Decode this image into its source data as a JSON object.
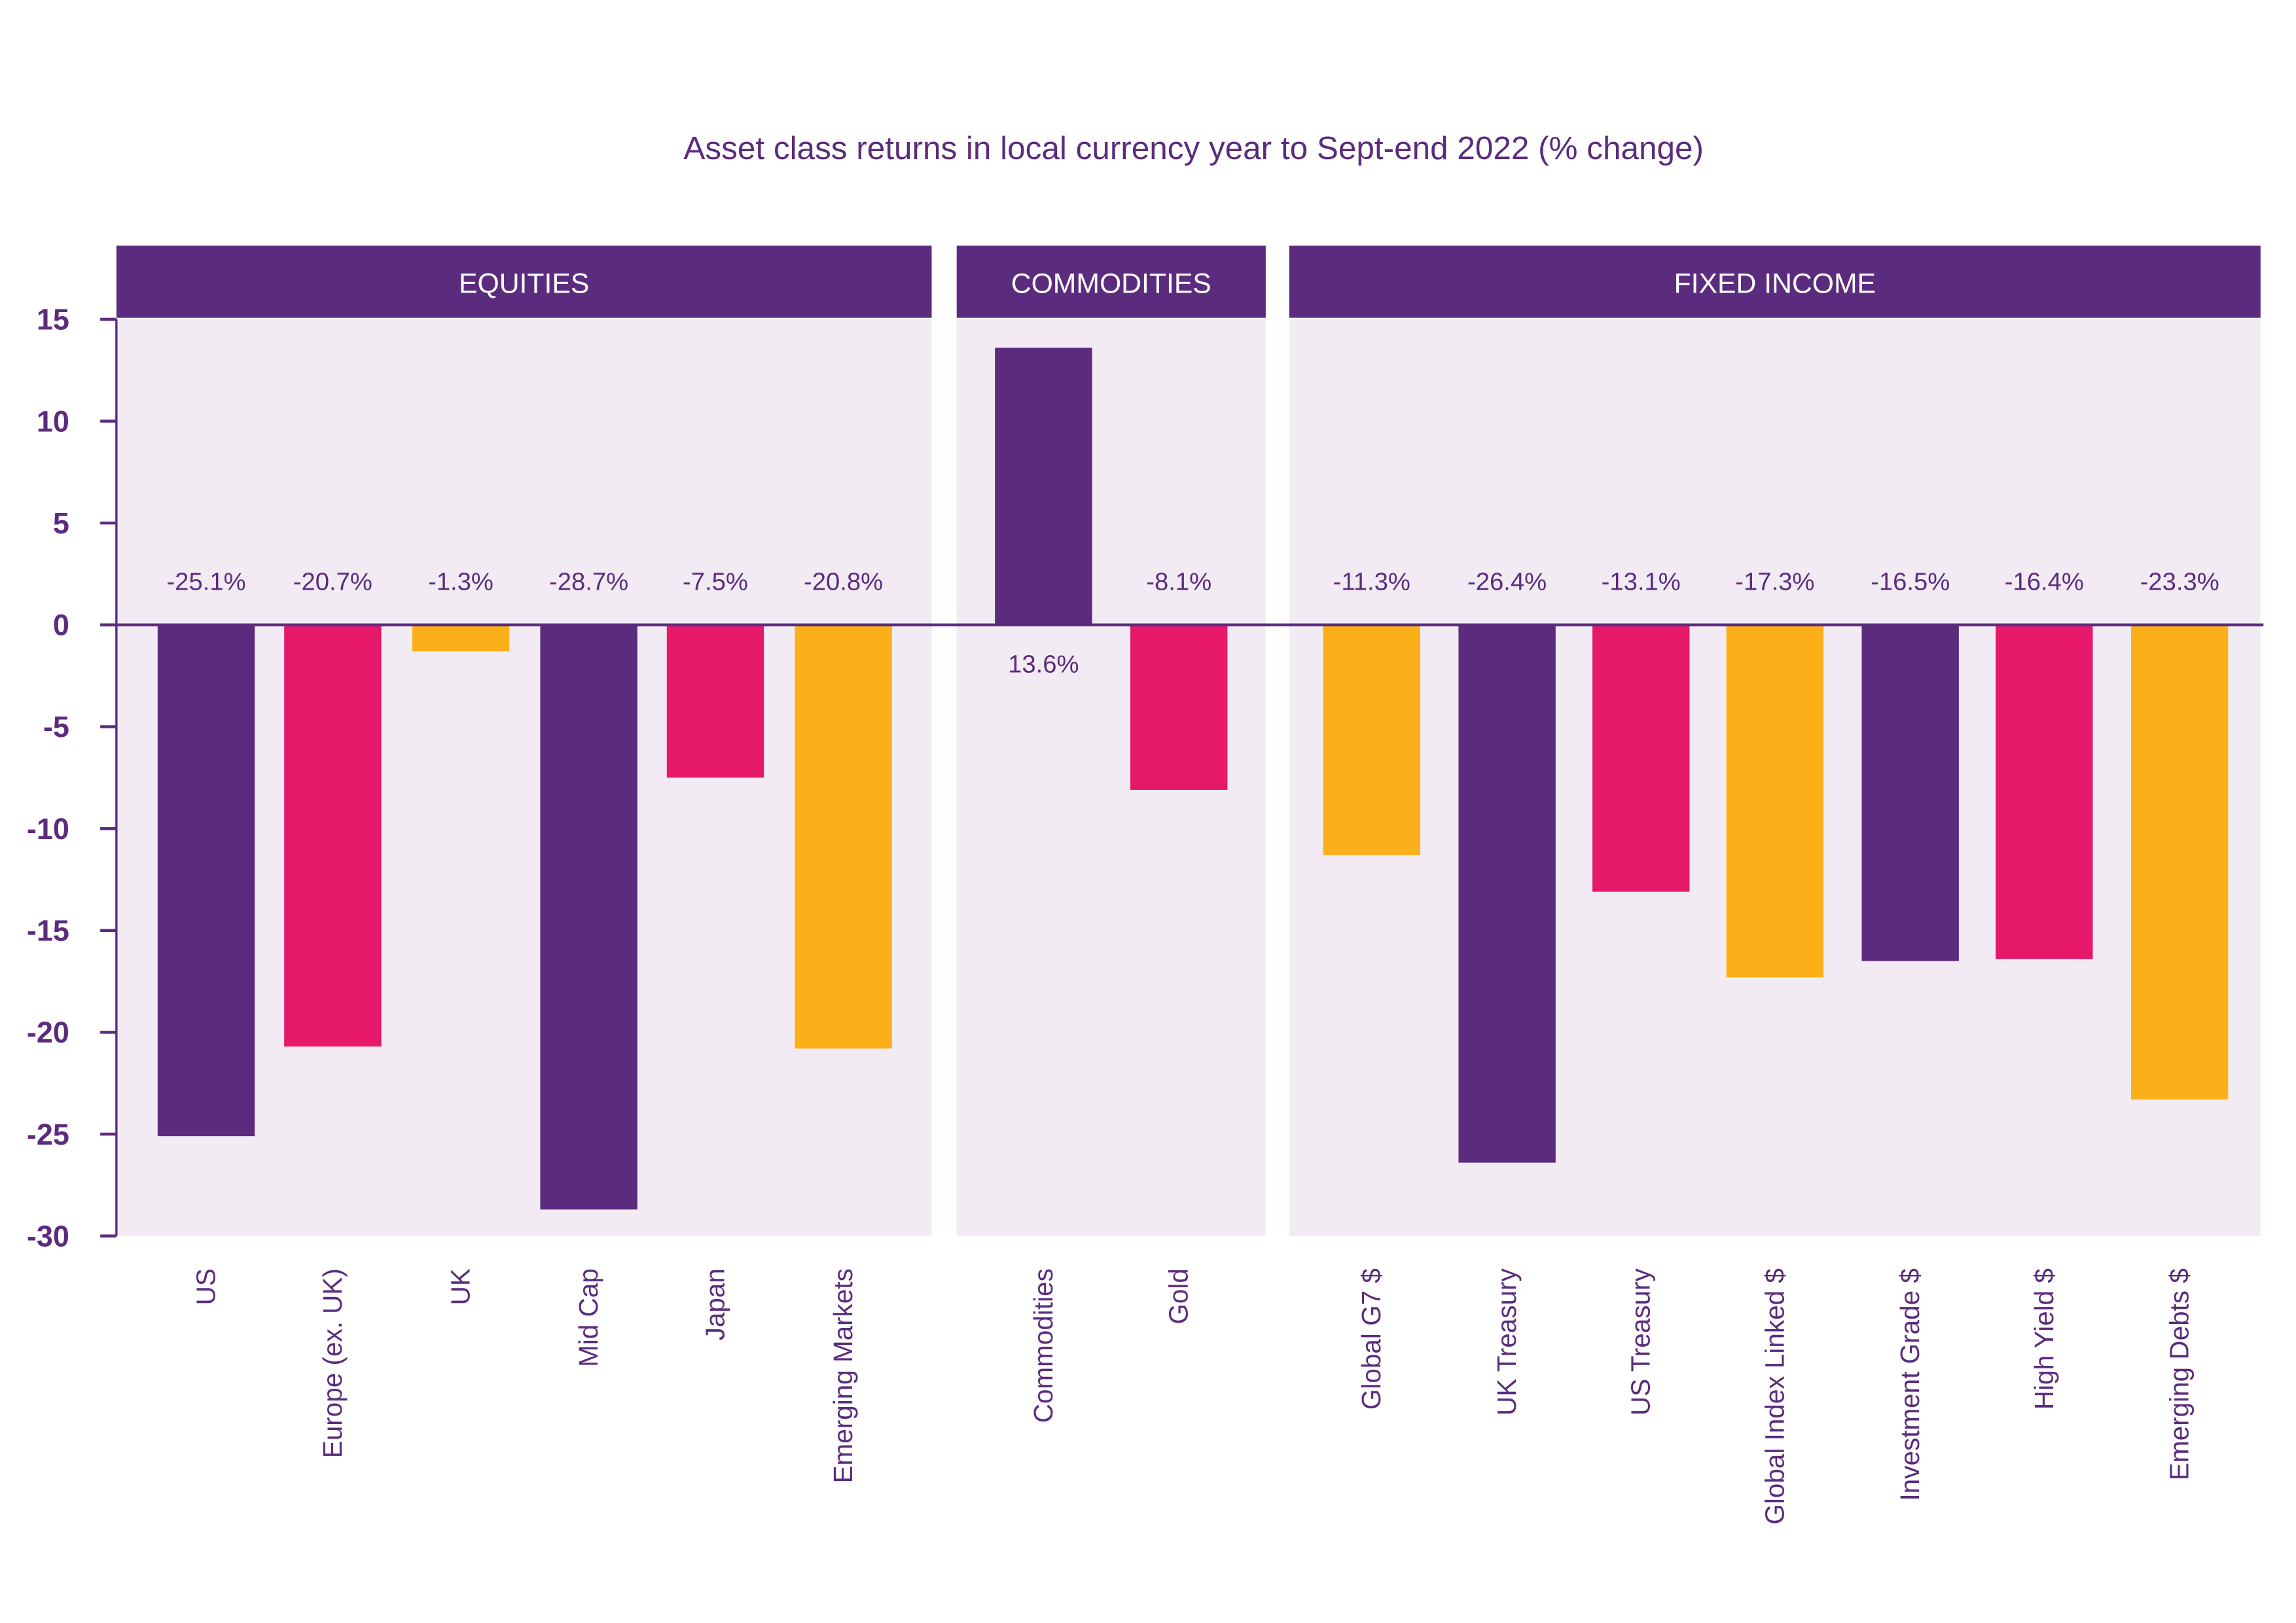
{
  "chart_data": {
    "type": "bar",
    "title": "Asset class returns in local currency year to Sept-end 2022 (% change)",
    "xlabel": "",
    "ylabel": "",
    "ylim": [
      -30,
      15
    ],
    "yticks": [
      15,
      10,
      5,
      0,
      -5,
      -10,
      -15,
      -20,
      -25,
      -30
    ],
    "grid": false,
    "colors": {
      "purple": "#5B2C7D",
      "pink": "#E5186A",
      "yellow": "#FBB019",
      "panel_bg": "#F2EBF4",
      "header_bg": "#5B2C7D"
    },
    "groups": [
      {
        "name": "EQUITIES",
        "bars": [
          {
            "category": "US",
            "value": -25.1,
            "label": "-25.1%",
            "color": "#5B2C7D"
          },
          {
            "category": "Europe (ex. UK)",
            "value": -20.7,
            "label": "-20.7%",
            "color": "#E5186A"
          },
          {
            "category": "UK",
            "value": -1.3,
            "label": "-1.3%",
            "color": "#FBB019"
          },
          {
            "category": "Mid Cap",
            "value": -28.7,
            "label": "-28.7%",
            "color": "#5B2C7D"
          },
          {
            "category": "Japan",
            "value": -7.5,
            "label": "-7.5%",
            "color": "#E5186A"
          },
          {
            "category": "Emerging Markets",
            "value": -20.8,
            "label": "-20.8%",
            "color": "#FBB019"
          }
        ]
      },
      {
        "name": "COMMODITIES",
        "bars": [
          {
            "category": "Commodities",
            "value": 13.6,
            "label": "13.6%",
            "color": "#5B2C7D"
          },
          {
            "category": "Gold",
            "value": -8.1,
            "label": "-8.1%",
            "color": "#E5186A"
          }
        ]
      },
      {
        "name": "FIXED INCOME",
        "bars": [
          {
            "category": "Global G7 $",
            "value": -11.3,
            "label": "-11.3%",
            "color": "#FBB019"
          },
          {
            "category": "UK Treasury",
            "value": -26.4,
            "label": "-26.4%",
            "color": "#5B2C7D"
          },
          {
            "category": "US Treasury",
            "value": -13.1,
            "label": "-13.1%",
            "color": "#E5186A"
          },
          {
            "category": "Global Index Linked $",
            "value": -17.3,
            "label": "-17.3%",
            "color": "#FBB019"
          },
          {
            "category": "Investment Grade $",
            "value": -16.5,
            "label": "-16.5%",
            "color": "#5B2C7D"
          },
          {
            "category": "High Yield $",
            "value": -16.4,
            "label": "-16.4%",
            "color": "#E5186A"
          },
          {
            "category": "Emerging Debts $",
            "value": -23.3,
            "label": "-23.3%",
            "color": "#FBB019"
          }
        ]
      }
    ]
  }
}
